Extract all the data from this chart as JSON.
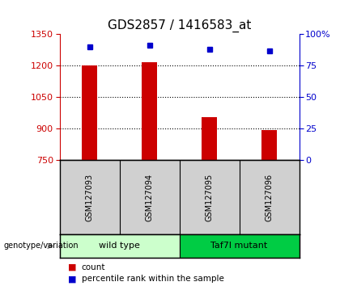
{
  "title": "GDS2857 / 1416583_at",
  "samples": [
    "GSM127093",
    "GSM127094",
    "GSM127095",
    "GSM127096"
  ],
  "counts": [
    1203,
    1218,
    955,
    893
  ],
  "percentiles": [
    90,
    91,
    88,
    87
  ],
  "ylim_left": [
    750,
    1350
  ],
  "yticks_left": [
    750,
    900,
    1050,
    1200,
    1350
  ],
  "ylim_right": [
    0,
    100
  ],
  "yticks_right": [
    0,
    25,
    50,
    75,
    100
  ],
  "bar_color": "#cc0000",
  "dot_color": "#0000cc",
  "groups": [
    {
      "label": "wild type",
      "indices": [
        0,
        1
      ],
      "color": "#ccffcc"
    },
    {
      "label": "Taf7l mutant",
      "indices": [
        2,
        3
      ],
      "color": "#00cc44"
    }
  ],
  "group_label": "genotype/variation",
  "legend_count_label": "count",
  "legend_pct_label": "percentile rank within the sample",
  "sample_box_color": "#d0d0d0",
  "title_fontsize": 11,
  "tick_fontsize": 8,
  "bar_width": 0.25
}
